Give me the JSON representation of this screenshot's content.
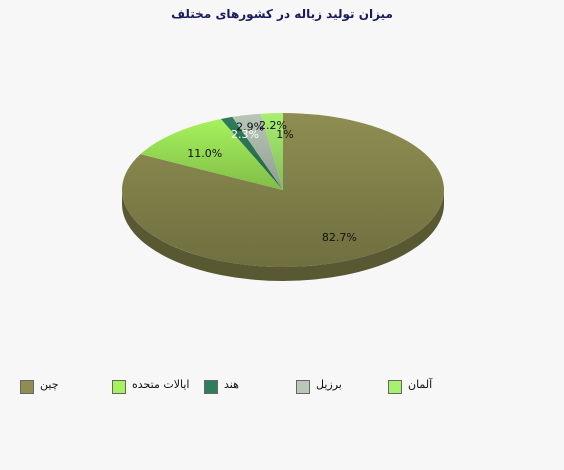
{
  "chart_data": {
    "type": "pie",
    "title": "میزان تولید زباله در کشورهای مختلف",
    "slices": [
      {
        "name": "چین",
        "value": 82.7,
        "label": "82.7%",
        "color": "#8e8e52"
      },
      {
        "name": "ایالات متحده",
        "value": 11.0,
        "label": "11.0%",
        "color": "#a6f25c"
      },
      {
        "name": "هند",
        "value": 1.2,
        "label": "",
        "color": "#2e7d5c"
      },
      {
        "name": "برزیل",
        "value": 2.9,
        "label": "2.9%",
        "color": "#b8c8b8"
      },
      {
        "name": "آلمان",
        "value": 2.2,
        "label": "2.2%",
        "color": "#a8f070"
      }
    ],
    "extra_labels": [
      "2.3%",
      "1%"
    ],
    "legend_position": "bottom"
  }
}
